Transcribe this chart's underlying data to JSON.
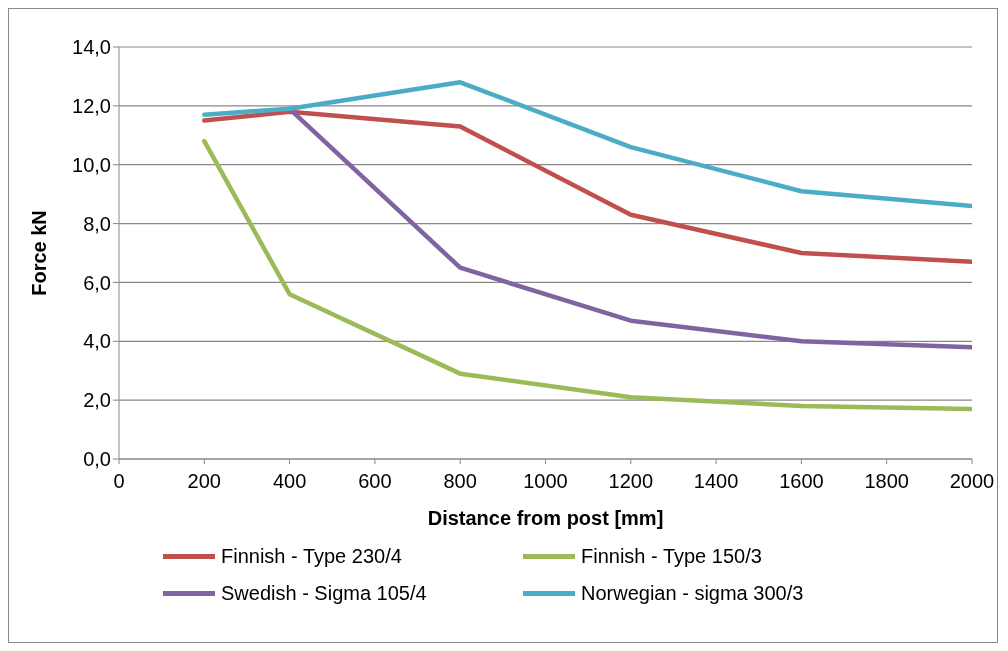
{
  "chart_data": {
    "type": "line",
    "xlabel": "Distance from post [mm]",
    "ylabel": "Force kN",
    "x": [
      200,
      400,
      800,
      1200,
      1600,
      2000
    ],
    "series": [
      {
        "name": "Finnish - Type 230/4",
        "color": "#c0504d",
        "values": [
          11.5,
          11.8,
          11.3,
          8.3,
          7.0,
          6.7
        ]
      },
      {
        "name": "Finnish - Type 150/3",
        "color": "#9bbb59",
        "values": [
          10.8,
          5.6,
          2.9,
          2.1,
          1.8,
          1.7
        ]
      },
      {
        "name": "Swedish - Sigma 105/4",
        "color": "#8064a2",
        "values": [
          null,
          11.9,
          6.5,
          4.7,
          4.0,
          3.8
        ]
      },
      {
        "name": "Norwegian - sigma 300/3",
        "color": "#4bacc6",
        "values": [
          11.7,
          11.9,
          12.8,
          10.6,
          9.1,
          8.6
        ]
      }
    ],
    "xlim": [
      0,
      2000
    ],
    "xticks": [
      0,
      200,
      400,
      600,
      800,
      1000,
      1200,
      1400,
      1600,
      1800,
      2000
    ],
    "ylim": [
      0,
      14
    ],
    "yticks": [
      {
        "value": 0,
        "label": "0,0"
      },
      {
        "value": 2,
        "label": "2,0"
      },
      {
        "value": 4,
        "label": "4,0"
      },
      {
        "value": 6,
        "label": "6,0"
      },
      {
        "value": 8,
        "label": "8,0"
      },
      {
        "value": 10,
        "label": "10,0"
      },
      {
        "value": 12,
        "label": "12,0"
      },
      {
        "value": 14,
        "label": "14,0"
      }
    ],
    "grid": "y",
    "legend": "bottom",
    "marker": "none",
    "line_style": "solid"
  }
}
